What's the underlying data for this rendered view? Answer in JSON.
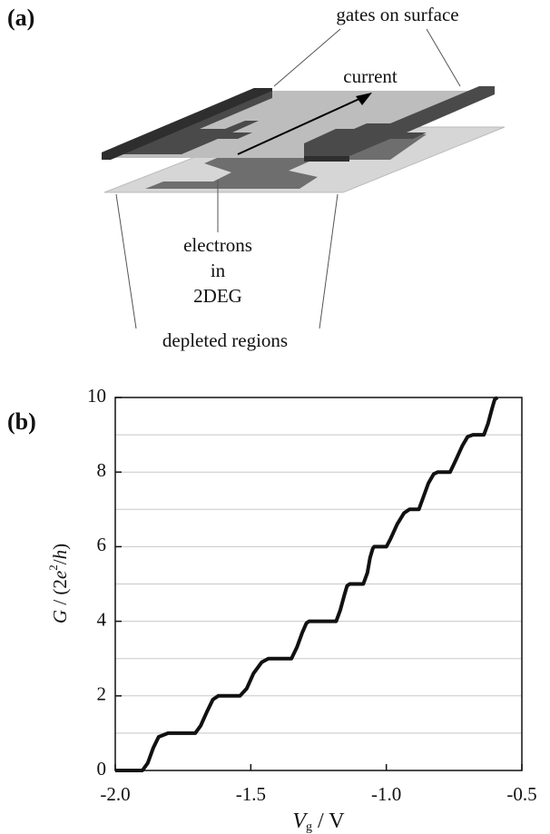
{
  "panel_a": {
    "label": "(a)",
    "gates_label": "gates on surface",
    "current_label": "current",
    "electrons_label": [
      "electrons",
      "in",
      "2DEG"
    ],
    "depleted_label": "depleted regions"
  },
  "chart_data": {
    "type": "line",
    "panel_label": "(b)",
    "xlabel": [
      "V",
      "g",
      " / V"
    ],
    "ylabel": [
      "G",
      " / (2",
      "e",
      "2",
      "/",
      "h",
      ")"
    ],
    "xlim": [
      -2.0,
      -0.5
    ],
    "ylim": [
      0,
      10
    ],
    "xticks": [
      {
        "value": -2,
        "label": "-2.0"
      },
      -1.5,
      {
        "value": -1,
        "label": "-1.0"
      },
      -0.5
    ],
    "yticks": [
      0,
      2,
      4,
      6,
      8,
      10
    ],
    "ygrid": [
      0,
      1,
      2,
      3,
      4,
      5,
      6,
      7,
      8,
      9,
      10
    ],
    "color": "#111111",
    "x": [
      -2.0,
      -1.9,
      -1.88,
      -1.86,
      -1.84,
      -1.805,
      -1.705,
      -1.685,
      -1.66,
      -1.64,
      -1.62,
      -1.54,
      -1.515,
      -1.49,
      -1.46,
      -1.435,
      -1.35,
      -1.33,
      -1.31,
      -1.295,
      -1.285,
      -1.185,
      -1.17,
      -1.155,
      -1.145,
      -1.135,
      -1.085,
      -1.07,
      -1.06,
      -1.05,
      -1.045,
      -1.0,
      -0.985,
      -0.96,
      -0.935,
      -0.915,
      -0.88,
      -0.865,
      -0.845,
      -0.825,
      -0.81,
      -0.765,
      -0.745,
      -0.72,
      -0.7,
      -0.68,
      -0.64,
      -0.625,
      -0.61,
      -0.6,
      -0.59
    ],
    "values": [
      0,
      0,
      0.2,
      0.6,
      0.9,
      1,
      1,
      1.2,
      1.6,
      1.9,
      2,
      2,
      2.2,
      2.6,
      2.9,
      3,
      3,
      3.3,
      3.7,
      3.95,
      4,
      4,
      4.3,
      4.7,
      4.95,
      5,
      5,
      5.3,
      5.7,
      5.95,
      6,
      6,
      6.2,
      6.6,
      6.9,
      7,
      7,
      7.3,
      7.7,
      7.95,
      8,
      8,
      8.3,
      8.7,
      8.95,
      9,
      9,
      9.3,
      9.7,
      9.95,
      10
    ]
  }
}
